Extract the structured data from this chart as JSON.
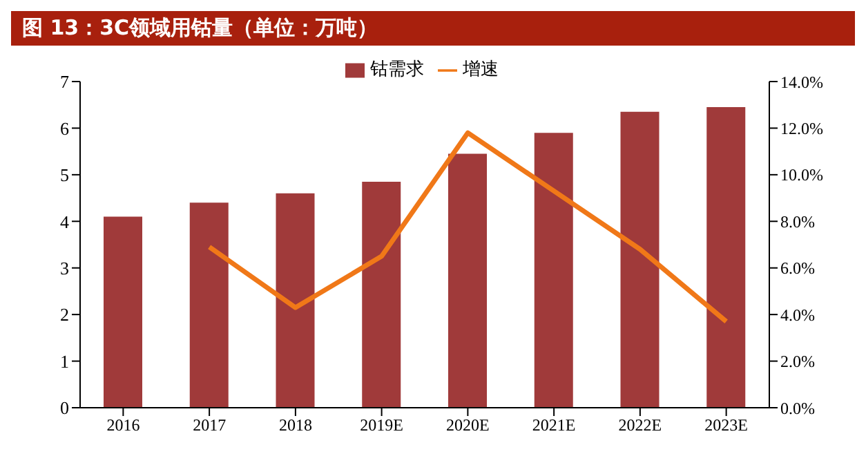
{
  "chart_data": {
    "type": "bar",
    "title": "图 13：3C领域用钴量（单位：万吨）",
    "categories": [
      "2016",
      "2017",
      "2018",
      "2019E",
      "2020E",
      "2021E",
      "2022E",
      "2023E"
    ],
    "series": [
      {
        "name": "钴需求",
        "color": "#a03a3a",
        "values": [
          4.1,
          4.4,
          4.6,
          4.85,
          5.45,
          5.9,
          6.35,
          6.45
        ]
      },
      {
        "name": "增速",
        "type": "line",
        "axis": "y2",
        "color": "#f07818",
        "values": [
          null,
          6.9,
          4.3,
          6.5,
          11.8,
          9.3,
          6.8,
          3.7
        ]
      }
    ],
    "ylim": [
      0,
      7
    ],
    "yticks": [
      0,
      1,
      2,
      3,
      4,
      5,
      6,
      7
    ],
    "y2lim": [
      0,
      14
    ],
    "y2ticks": [
      {
        "value": 0,
        "label": "0.0%"
      },
      {
        "value": 2,
        "label": "2.0%"
      },
      {
        "value": 4,
        "label": "4.0%"
      },
      {
        "value": 6,
        "label": "6.0%"
      },
      {
        "value": 8,
        "label": "8.0%"
      },
      {
        "value": 10,
        "label": "10.0%"
      },
      {
        "value": 12,
        "label": "12.0%"
      },
      {
        "value": 14,
        "label": "14.0%"
      }
    ],
    "legend": "top",
    "grid": false,
    "marker": "none"
  }
}
